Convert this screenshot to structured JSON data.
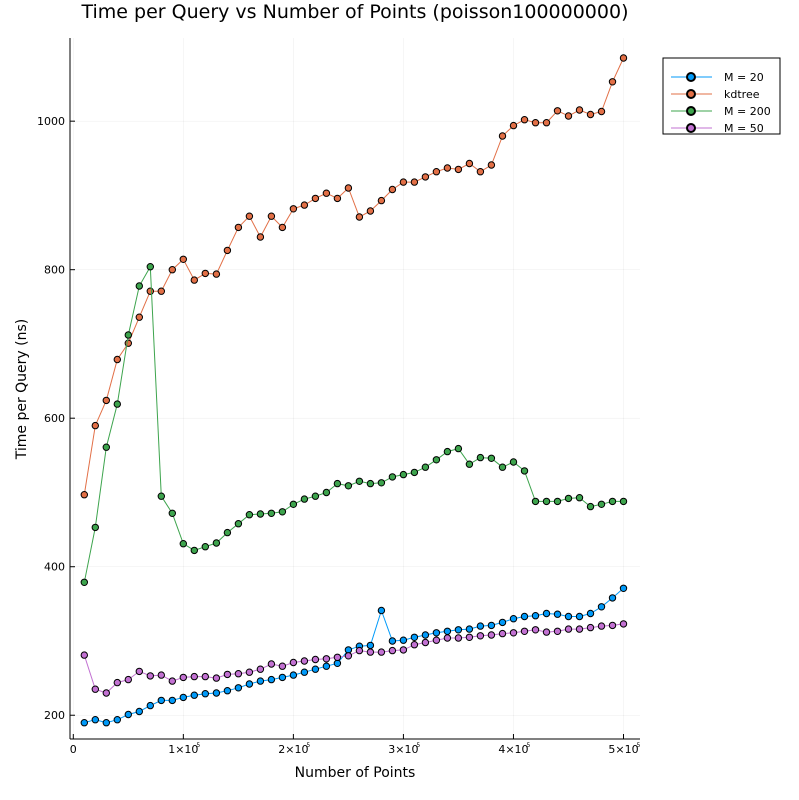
{
  "chart_data": {
    "type": "line",
    "title": "Time per Query vs Number of Points (poisson100000000)",
    "xlabel": "Number of Points",
    "ylabel": "Time per Query (ns)",
    "xlim": [
      -3000,
      515000
    ],
    "ylim": [
      168,
      1112
    ],
    "x_ticks": [
      {
        "value": 0,
        "label": "0",
        "exp": ""
      },
      {
        "value": 100000,
        "label": "1×10",
        "exp": "5"
      },
      {
        "value": 200000,
        "label": "2×10",
        "exp": "5"
      },
      {
        "value": 300000,
        "label": "3×10",
        "exp": "5"
      },
      {
        "value": 400000,
        "label": "4×10",
        "exp": "5"
      },
      {
        "value": 500000,
        "label": "5×10",
        "exp": "5"
      }
    ],
    "y_ticks": [
      {
        "value": 200,
        "label": "200"
      },
      {
        "value": 400,
        "label": "400"
      },
      {
        "value": 600,
        "label": "600"
      },
      {
        "value": 800,
        "label": "800"
      },
      {
        "value": 1000,
        "label": "1000"
      }
    ],
    "grid": true,
    "legend_position": "top-right",
    "x": [
      10000,
      20000,
      30000,
      40000,
      50000,
      60000,
      70000,
      80000,
      90000,
      100000,
      110000,
      120000,
      130000,
      140000,
      150000,
      160000,
      170000,
      180000,
      190000,
      200000,
      210000,
      220000,
      230000,
      240000,
      250000,
      260000,
      270000,
      280000,
      290000,
      300000,
      310000,
      320000,
      330000,
      340000,
      350000,
      360000,
      370000,
      380000,
      390000,
      400000,
      410000,
      420000,
      430000,
      440000,
      450000,
      460000,
      470000,
      480000,
      490000,
      500000
    ],
    "series": [
      {
        "name": "M = 20",
        "color": "#009af9",
        "values": [
          190,
          194,
          190,
          194,
          201,
          205,
          213,
          220,
          220,
          224,
          227,
          229,
          230,
          233,
          237,
          242,
          246,
          248,
          251,
          254,
          258,
          262,
          266,
          270,
          288,
          293,
          294,
          341,
          300,
          301,
          305,
          308,
          311,
          313,
          315,
          316,
          320,
          321,
          325,
          330,
          333,
          334,
          337,
          336,
          333,
          333,
          337,
          346,
          358,
          371
        ]
      },
      {
        "name": "kdtree",
        "color": "#e26f46",
        "values": [
          497,
          590,
          624,
          679,
          701,
          736,
          771,
          771,
          800,
          814,
          786,
          795,
          794,
          826,
          857,
          872,
          844,
          872,
          857,
          882,
          887,
          896,
          903,
          896,
          910,
          871,
          879,
          893,
          908,
          918,
          918,
          925,
          932,
          937,
          935,
          943,
          932,
          941,
          980,
          994,
          1002,
          998,
          998,
          1014,
          1007,
          1015,
          1009,
          1013,
          1053,
          1085
        ]
      },
      {
        "name": "M = 200",
        "color": "#3da44d",
        "values": [
          379,
          453,
          561,
          619,
          712,
          778,
          804,
          495,
          472,
          431,
          422,
          427,
          432,
          446,
          458,
          470,
          471,
          472,
          474,
          484,
          491,
          495,
          500,
          512,
          509,
          515,
          512,
          513,
          521,
          524,
          527,
          534,
          544,
          555,
          559,
          538,
          547,
          546,
          534,
          541,
          529,
          488,
          488,
          488,
          492,
          493,
          481,
          484,
          488,
          488
        ]
      },
      {
        "name": "M = 50",
        "color": "#c271d2",
        "values": [
          281,
          235,
          230,
          244,
          248,
          259,
          253,
          254,
          246,
          251,
          252,
          252,
          250,
          255,
          256,
          258,
          262,
          269,
          266,
          271,
          273,
          275,
          276,
          278,
          280,
          287,
          285,
          285,
          287,
          288,
          295,
          298,
          301,
          304,
          304,
          305,
          307,
          308,
          310,
          311,
          313,
          315,
          312,
          313,
          316,
          316,
          318,
          320,
          321,
          323
        ]
      }
    ]
  }
}
